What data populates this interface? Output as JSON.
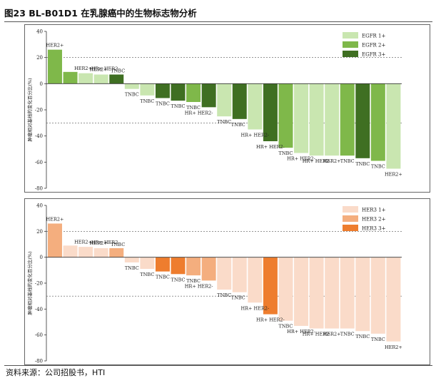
{
  "title": "图23 BL-B01D1 在乳腺癌中的生物标志物分析",
  "source": "资料来源：公司招股书，HTI",
  "chart_data": [
    {
      "type": "bar",
      "name": "egfr-waterfall",
      "ylabel": "肿瘤相对基线的变化百分比(%)",
      "ylim": [
        -80,
        40
      ],
      "yticks": [
        40,
        20,
        0,
        -20,
        -40,
        -60,
        -80
      ],
      "reference_lines": [
        20,
        -30
      ],
      "grid": false,
      "legend_position": "top-right",
      "legend": [
        {
          "label": "EGFR 1+",
          "color": "#c9e6b0"
        },
        {
          "label": "EGFR 2+",
          "color": "#7fb84a"
        },
        {
          "label": "EGFR 3+",
          "color": "#3f6f22"
        }
      ],
      "values": [
        26,
        9,
        8,
        7,
        7,
        -4,
        -9,
        -11,
        -13,
        -14,
        -18,
        -25,
        -27,
        -35,
        -44,
        -49,
        -53,
        -55,
        -55,
        -55,
        -57,
        -59,
        -65
      ],
      "levels": [
        2,
        2,
        1,
        1,
        3,
        1,
        1,
        3,
        3,
        2,
        3,
        1,
        3,
        1,
        3,
        2,
        1,
        1,
        1,
        2,
        3,
        2,
        1
      ],
      "labels": [
        "HER2+",
        "HER2+",
        "HER2+",
        "HR+ HER2-",
        "TNBC",
        "TNBC",
        "TNBC",
        "TNBC",
        "TNBC",
        "TNBC",
        "HR+ HER2-",
        "TNBC",
        "TNBC",
        "HR+ HER2-",
        "HR+ HER2-",
        "TNBC",
        "HR+ HER2-",
        "HR+ HER2-",
        "HER2+",
        "TNBC",
        "TNBC",
        "TNBC",
        "HER2+"
      ]
    },
    {
      "type": "bar",
      "name": "her3-waterfall",
      "ylabel": "肿瘤相对基线的变化百分比(%)",
      "ylim": [
        -80,
        40
      ],
      "yticks": [
        40,
        20,
        0,
        -20,
        -40,
        -60,
        -80
      ],
      "reference_lines": [
        20,
        -30
      ],
      "grid": false,
      "legend_position": "top-right",
      "legend": [
        {
          "label": "HER3 1+",
          "color": "#fadbc9"
        },
        {
          "label": "HER3 2+",
          "color": "#f4ae7e"
        },
        {
          "label": "HER3 3+",
          "color": "#ee7d2e"
        }
      ],
      "values": [
        26,
        9,
        8,
        7,
        7,
        -4,
        -9,
        -11,
        -13,
        -14,
        -18,
        -25,
        -27,
        -35,
        -44,
        -49,
        -53,
        -55,
        -55,
        -55,
        -57,
        -59,
        -65
      ],
      "levels": [
        2,
        1,
        1,
        1,
        2,
        1,
        1,
        3,
        3,
        2,
        2,
        1,
        1,
        1,
        3,
        1,
        1,
        1,
        1,
        1,
        1,
        1,
        1
      ],
      "labels": [
        "HER2+",
        "HER2+",
        "HER2+",
        "HR+ HER2-",
        "TNBC",
        "TNBC",
        "TNBC",
        "TNBC",
        "TNBC",
        "TNBC",
        "HR+ HER2-",
        "TNBC",
        "TNBC",
        "HR+ HER2-",
        "HR+ HER2-",
        "TNBC",
        "HR+ HER2-",
        "HR+ HER2-",
        "HER2+",
        "TNBC",
        "TNBC",
        "TNBC",
        "HER2+"
      ]
    }
  ]
}
